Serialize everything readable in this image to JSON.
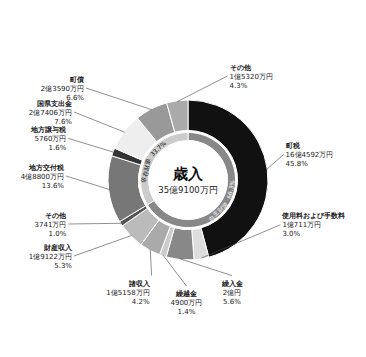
{
  "chart_data": {
    "type": "pie",
    "title": "歳入",
    "subtitle": "35億9100万円",
    "data_labels": true,
    "series": [
      {
        "categories": [
          "町税",
          "使用料および手数料",
          "繰入金",
          "繰越金",
          "諸収入",
          "財産収入",
          "その他",
          "地方交付税",
          "地方譲与税",
          "国県支出金",
          "町債",
          "その他"
        ],
        "values": [
          45.8,
          3.0,
          5.6,
          1.4,
          4.2,
          5.3,
          1.0,
          13.6,
          1.6,
          7.6,
          6.6,
          4.3
        ],
        "value_labels": [
          "45.8%",
          "3.0%",
          "5.6%",
          "1.4%",
          "4.2%",
          "5.3%",
          "1.0%",
          "13.6%",
          "1.6%",
          "7.6%",
          "6.6%",
          "4.3%"
        ],
        "amounts": [
          "16億4592万円",
          "1億711万円",
          "2億円",
          "4900万円",
          "1億5158万円",
          "1億9122万円",
          "3741万円",
          "4億8800万円",
          "5760万円",
          "2億7406万円",
          "2億3590万円",
          "1億5320万円"
        ],
        "colors": [
          "#111111",
          "#dddddd",
          "#888888",
          "#cccccc",
          "#aaaaaa",
          "#bbbbbb",
          "#555555",
          "#777777",
          "#333333",
          "#eeeeee",
          "#999999",
          "#aaaaaa"
        ]
      },
      {
        "categories": [
          "自主財源",
          "依存財源"
        ],
        "values": [
          66.3,
          33.7
        ],
        "value_labels": [
          "66.3%",
          "33.7%"
        ],
        "colors": [
          "#888888",
          "#cccccc"
        ]
      }
    ]
  }
}
